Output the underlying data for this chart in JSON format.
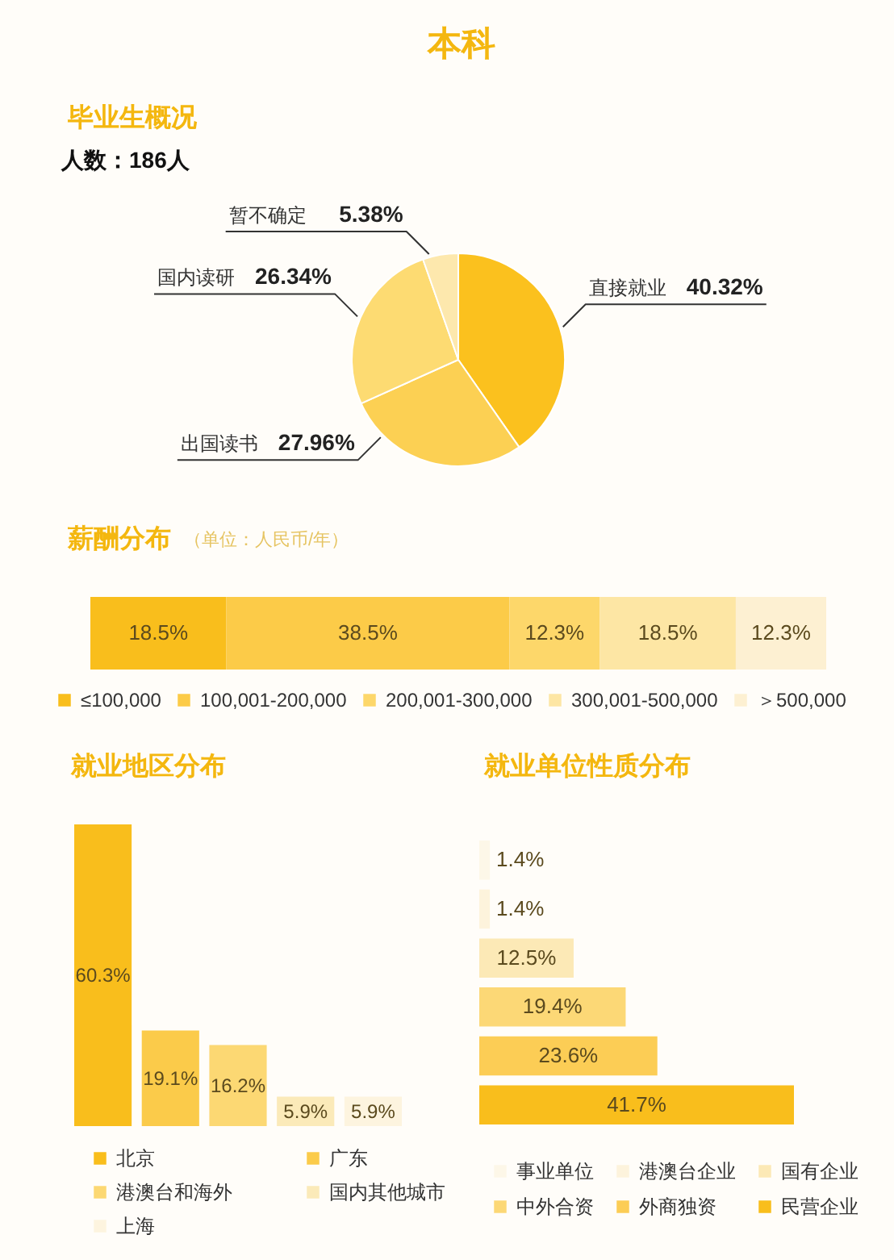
{
  "chart_data": [
    {
      "type": "pie",
      "title": "毕业生概况",
      "subtitle": "人数：186人",
      "annotations": [
        "本科"
      ],
      "categories": [
        "直接就业",
        "出国读书",
        "国内读研",
        "暂不确定"
      ],
      "values": [
        40.32,
        27.96,
        26.34,
        5.38
      ],
      "value_labels": [
        "40.32%",
        "27.96%",
        "26.34%",
        "5.38%"
      ],
      "colors": [
        "#fbc11e",
        "#fcd053",
        "#fddb72",
        "#fde8ad"
      ]
    },
    {
      "type": "bar",
      "title": "薪酬分布",
      "subtitle": "（单位：人民币/年）",
      "orientation": "horizontal",
      "stacked": true,
      "categories": [
        null
      ],
      "series": [
        {
          "name": "≤100,000",
          "color": "#f9be1c",
          "values": [
            18.5
          ],
          "value_labels": [
            "18.5%"
          ]
        },
        {
          "name": "100,001-200,000",
          "color": "#fccb48",
          "values": [
            38.5
          ],
          "value_labels": [
            "38.5%"
          ]
        },
        {
          "name": "200,001-300,000",
          "color": "#fdd76a",
          "values": [
            12.3
          ],
          "value_labels": [
            "12.3%"
          ]
        },
        {
          "name": "300,001-500,000",
          "color": "#fde6a4",
          "values": [
            18.5
          ],
          "value_labels": [
            "18.5%"
          ]
        },
        {
          "name": "＞500,000",
          "color": "#fdf0d2",
          "values": [
            12.3
          ],
          "value_labels": [
            "12.3%"
          ]
        }
      ],
      "legend": "bottom",
      "tick_labels": false
    },
    {
      "type": "bar",
      "title": "就业地区分布",
      "stacked": true,
      "categories": [
        null,
        null,
        null,
        null,
        null
      ],
      "series": [
        {
          "name": "北京",
          "color": "#f9be1c",
          "values": [
            60.3,
            null,
            null,
            null,
            null
          ],
          "value_labels": [
            "60.3%",
            null,
            null,
            null,
            null
          ]
        },
        {
          "name": "广东",
          "color": "#fbcb4a",
          "values": [
            null,
            19.1,
            null,
            null,
            null
          ],
          "value_labels": [
            null,
            "19.1%",
            null,
            null,
            null
          ]
        },
        {
          "name": "港澳台和海外",
          "color": "#fcd873",
          "values": [
            null,
            null,
            16.2,
            null,
            null
          ],
          "value_labels": [
            null,
            null,
            "16.2%",
            null,
            null
          ]
        },
        {
          "name": "国内其他城市",
          "color": "#fbeab9",
          "values": [
            null,
            null,
            null,
            5.9,
            null
          ],
          "value_labels": [
            null,
            null,
            null,
            "5.9%",
            null
          ]
        },
        {
          "name": "上海",
          "color": "#fdf4df",
          "values": [
            null,
            null,
            null,
            null,
            5.9
          ],
          "value_labels": [
            null,
            null,
            null,
            null,
            "5.9%"
          ]
        }
      ],
      "legend": "bottom",
      "tick_labels": false
    },
    {
      "type": "bar",
      "title": "就业单位性质分布",
      "orientation": "horizontal",
      "stacked": true,
      "categories": [
        null,
        null,
        null,
        null,
        null,
        null
      ],
      "series": [
        {
          "name": "事业单位",
          "color": "#fdf7e8",
          "values": [
            1.4,
            null,
            null,
            null,
            null,
            null
          ],
          "value_labels": [
            "1.4%",
            null,
            null,
            null,
            null,
            null
          ]
        },
        {
          "name": "港澳台企业",
          "color": "#fdf3dc",
          "values": [
            null,
            1.4,
            null,
            null,
            null,
            null
          ],
          "value_labels": [
            null,
            "1.4%",
            null,
            null,
            null,
            null
          ]
        },
        {
          "name": "国有企业",
          "color": "#fce9b6",
          "values": [
            null,
            null,
            12.5,
            null,
            null,
            null
          ],
          "value_labels": [
            null,
            null,
            "12.5%",
            null,
            null,
            null
          ]
        },
        {
          "name": "中外合资",
          "color": "#fcd876",
          "values": [
            null,
            null,
            null,
            19.4,
            null,
            null
          ],
          "value_labels": [
            null,
            null,
            null,
            "19.4%",
            null,
            null
          ]
        },
        {
          "name": "外商独资",
          "color": "#fccd55",
          "values": [
            null,
            null,
            null,
            null,
            23.6,
            null
          ],
          "value_labels": [
            null,
            null,
            null,
            null,
            "23.6%",
            null
          ]
        },
        {
          "name": "民营企业",
          "color": "#f9be1c",
          "values": [
            null,
            null,
            null,
            null,
            null,
            41.7
          ],
          "value_labels": [
            null,
            null,
            null,
            null,
            null,
            "41.7%"
          ]
        }
      ],
      "legend": "bottom",
      "tick_labels": false
    }
  ]
}
